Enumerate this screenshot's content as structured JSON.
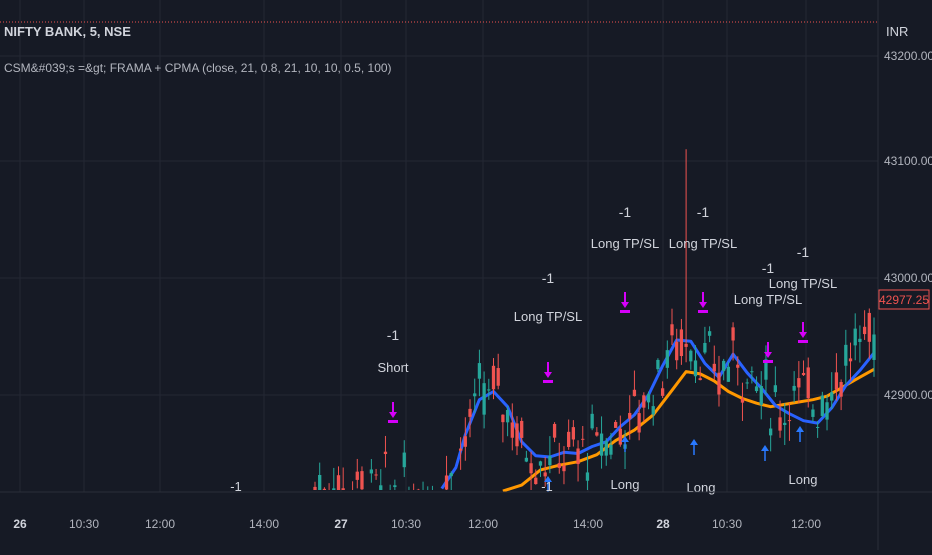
{
  "header": {
    "symbol": "NIFTY BANK, 5, NSE",
    "indicator": "CSM&#039;s =&gt; FRAMA + CPMA (close, 21, 0.8, 21, 10, 10, 0.5, 100)"
  },
  "currency": "INR",
  "last_price_label": "42977.25",
  "colors": {
    "background": "#161a25",
    "grid": "#242833",
    "up": "#26a69a",
    "down": "#ef5350",
    "frama": "#2962ff",
    "cpma": "#ff9800",
    "marker": "#d500f9",
    "arrow": "#2979ff",
    "text": "#b2b5be",
    "dotted_line": "#ef5350"
  },
  "chart_data": {
    "type": "candlestick",
    "title": "NIFTY BANK, 5, NSE",
    "y_ticks": [
      "43200.00",
      "43100.00",
      "43000.00",
      "42900.00"
    ],
    "x_ticks": [
      "26",
      "10:30",
      "12:00",
      "14:00",
      "27",
      "10:30",
      "12:00",
      "14:00",
      "28",
      "10:30",
      "12:00"
    ],
    "ylim": [
      42810,
      43230
    ],
    "n_bars": 120,
    "last_price": 42977.25,
    "frama": [
      [
        27,
        42820
      ],
      [
        30,
        42838
      ],
      [
        32,
        42866
      ],
      [
        35,
        42896
      ],
      [
        38,
        42903
      ],
      [
        41,
        42890
      ],
      [
        44,
        42860
      ],
      [
        47,
        42848
      ],
      [
        50,
        42847
      ],
      [
        53,
        42851
      ],
      [
        56,
        42850
      ],
      [
        59,
        42856
      ],
      [
        62,
        42860
      ],
      [
        65,
        42873
      ],
      [
        68,
        42883
      ],
      [
        71,
        42900
      ],
      [
        74,
        42925
      ],
      [
        77,
        42947
      ],
      [
        80,
        42946
      ],
      [
        83,
        42927
      ],
      [
        86,
        42915
      ],
      [
        89,
        42935
      ],
      [
        92,
        42919
      ],
      [
        95,
        42906
      ],
      [
        98,
        42891
      ],
      [
        101,
        42884
      ],
      [
        104,
        42878
      ],
      [
        107,
        42876
      ],
      [
        110,
        42889
      ],
      [
        113,
        42908
      ],
      [
        116,
        42921
      ],
      [
        119,
        42936
      ]
    ],
    "cpma": [
      [
        40,
        42815
      ],
      [
        44,
        42823
      ],
      [
        48,
        42836
      ],
      [
        52,
        42840
      ],
      [
        56,
        42843
      ],
      [
        60,
        42849
      ],
      [
        64,
        42861
      ],
      [
        68,
        42870
      ],
      [
        72,
        42883
      ],
      [
        76,
        42904
      ],
      [
        79,
        42920
      ],
      [
        82,
        42918
      ],
      [
        85,
        42912
      ],
      [
        88,
        42903
      ],
      [
        91,
        42897
      ],
      [
        94,
        42893
      ],
      [
        97,
        42890
      ],
      [
        100,
        42892
      ],
      [
        103,
        42894
      ],
      [
        106,
        42896
      ],
      [
        109,
        42899
      ],
      [
        112,
        42906
      ],
      [
        115,
        42913
      ],
      [
        119,
        42922
      ]
    ],
    "signals": [
      {
        "bar": 34,
        "label": "Short",
        "value": "-1",
        "type": "short"
      },
      {
        "bar": 60,
        "label": "Long TP/SL",
        "value": "-1",
        "type": "tp"
      },
      {
        "bar": 69,
        "label": "Long TP/SL",
        "value": "-1",
        "type": "tp"
      },
      {
        "bar": 79,
        "label": "Long TP/SL",
        "value": "-1",
        "type": "tp"
      },
      {
        "bar": 98,
        "label": "Long TP/SL",
        "value": "-1",
        "type": "tp"
      },
      {
        "bar": 104,
        "label": "Long TP/SL",
        "value": "-1",
        "type": "tp"
      }
    ],
    "long_arrows": [
      [
        60,
        "Long"
      ],
      [
        79,
        "Long"
      ],
      [
        87,
        "Long"
      ],
      [
        98,
        "Long"
      ],
      [
        104,
        "Long"
      ]
    ],
    "bottom_fragments": [
      [
        18,
        "-1"
      ],
      [
        52,
        "-1"
      ]
    ]
  }
}
